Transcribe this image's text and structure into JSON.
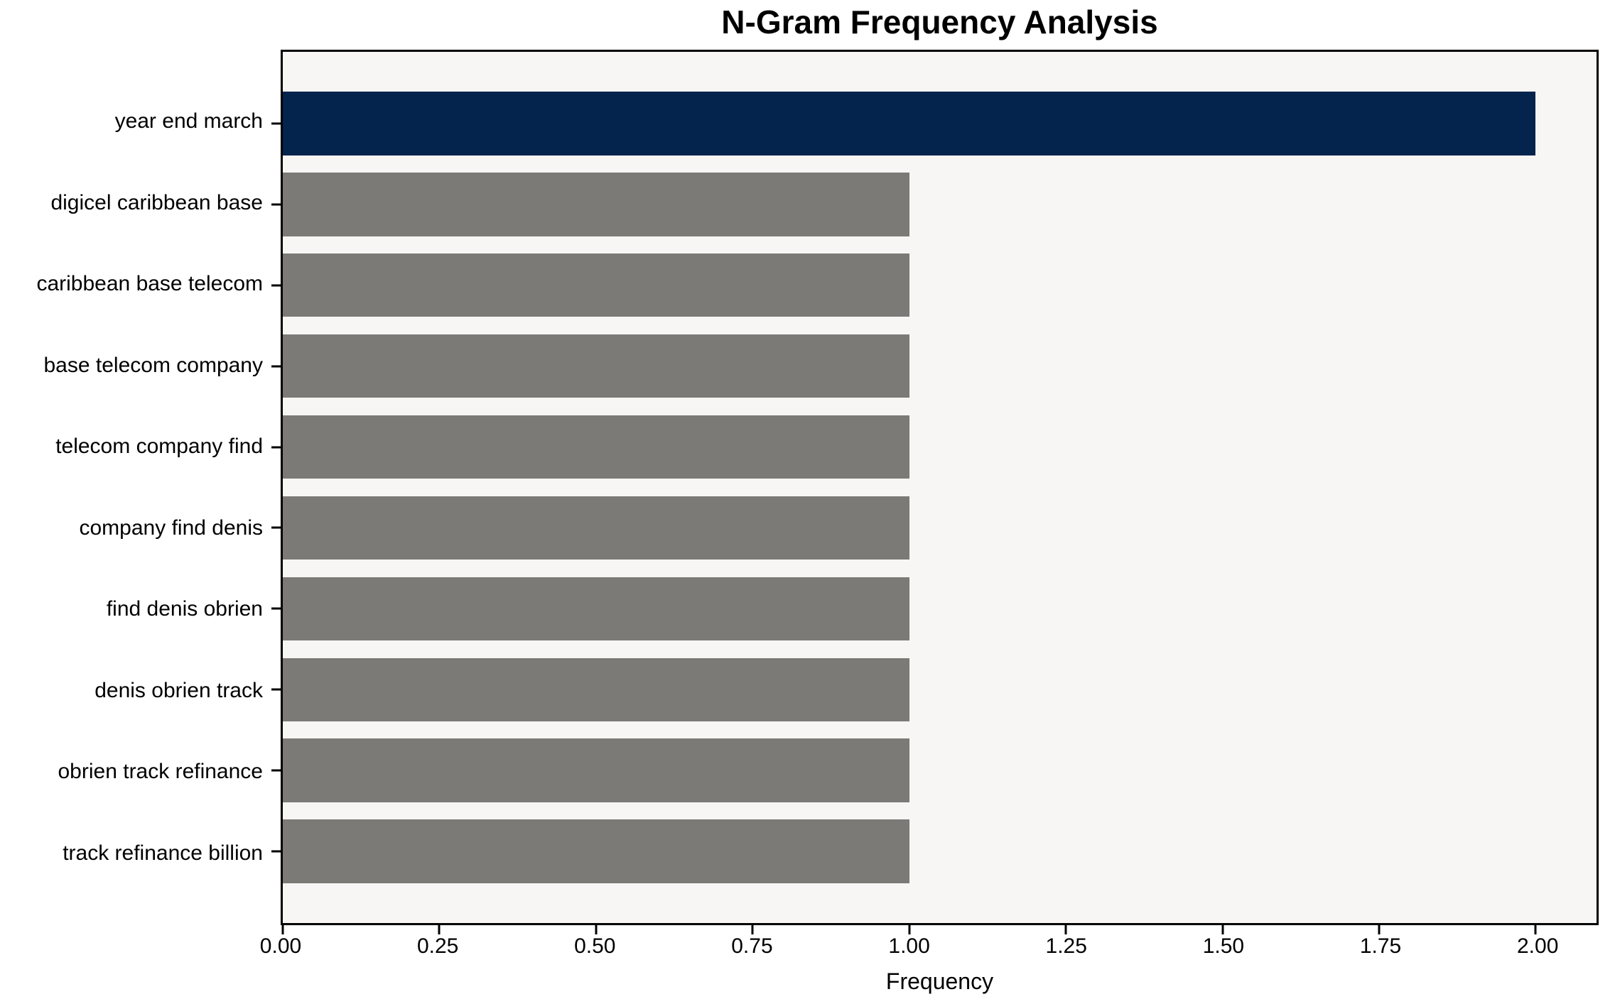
{
  "chart_data": {
    "type": "bar",
    "orientation": "horizontal",
    "title": "N-Gram Frequency Analysis",
    "xlabel": "Frequency",
    "ylabel": "",
    "categories": [
      "year end march",
      "digicel caribbean base",
      "caribbean base telecom",
      "base telecom company",
      "telecom company find",
      "company find denis",
      "find denis obrien",
      "denis obrien track",
      "obrien track refinance",
      "track refinance billion"
    ],
    "values": [
      2,
      1,
      1,
      1,
      1,
      1,
      1,
      1,
      1,
      1
    ],
    "bar_colors": [
      "#04234d",
      "#7b7a76",
      "#7b7a76",
      "#7b7a76",
      "#7b7a76",
      "#7b7a76",
      "#7b7a76",
      "#7b7a76",
      "#7b7a76",
      "#7b7a76"
    ],
    "xlim": [
      0,
      2.097
    ],
    "xticks": [
      {
        "value": 0.0,
        "label": "0.00"
      },
      {
        "value": 0.25,
        "label": "0.25"
      },
      {
        "value": 0.5,
        "label": "0.50"
      },
      {
        "value": 0.75,
        "label": "0.75"
      },
      {
        "value": 1.0,
        "label": "1.00"
      },
      {
        "value": 1.25,
        "label": "1.25"
      },
      {
        "value": 1.5,
        "label": "1.50"
      },
      {
        "value": 1.75,
        "label": "1.75"
      },
      {
        "value": 2.0,
        "label": "2.00"
      }
    ],
    "grid": false,
    "legend": "none",
    "colors": {
      "figure_background": "#ffffff",
      "plot_background": "#f7f6f4",
      "spine": "#000000",
      "text": "#000000",
      "highlight_bar": "#04234d",
      "default_bar": "#7b7a76"
    }
  }
}
